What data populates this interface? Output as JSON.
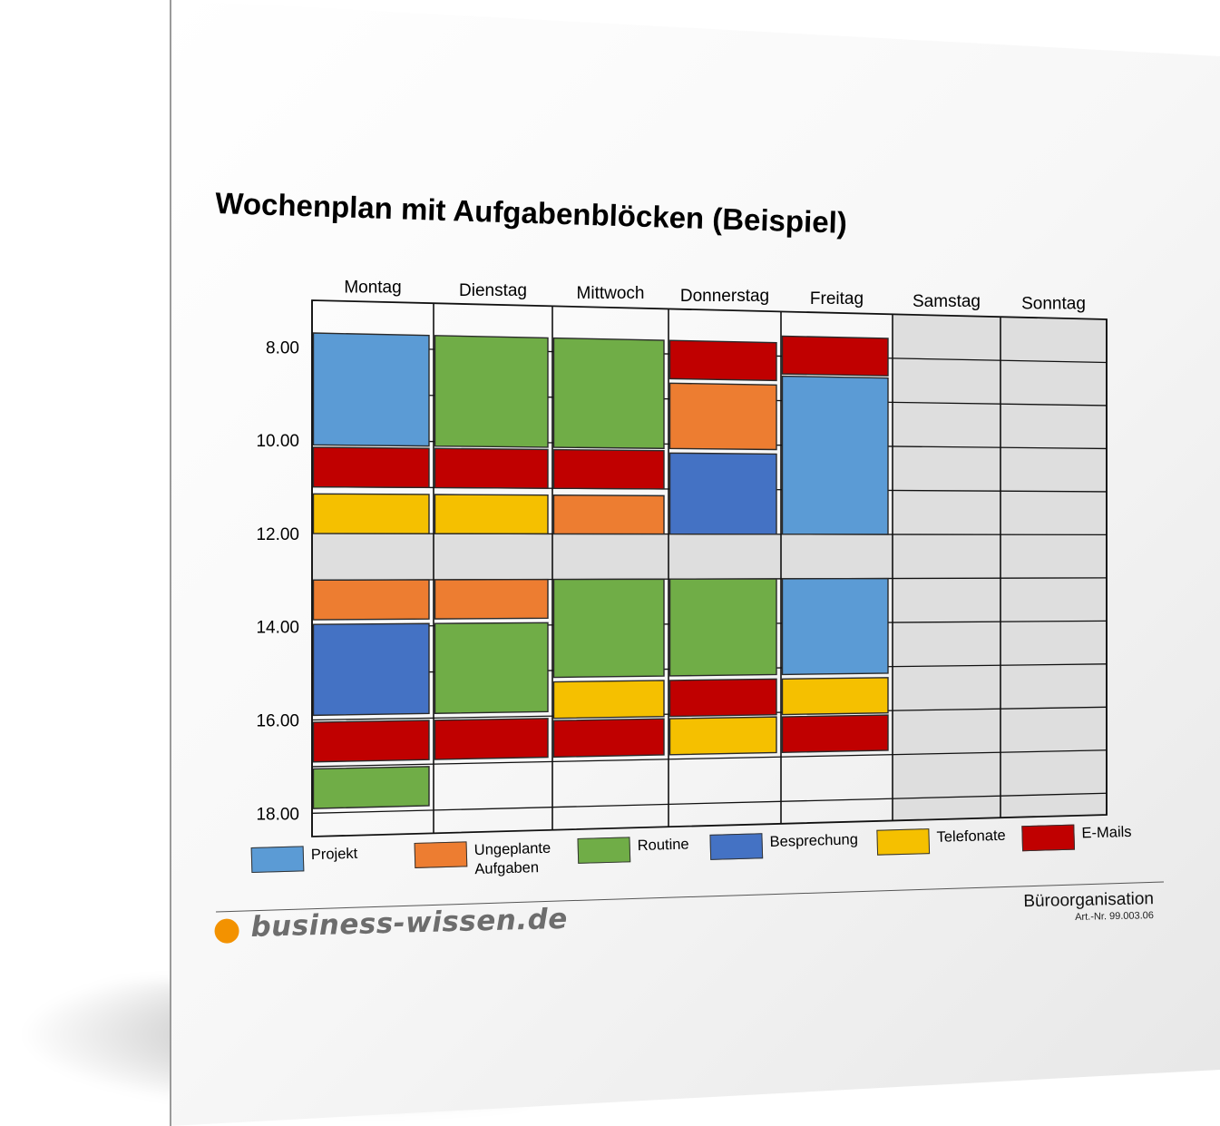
{
  "title": "Wochenplan mit Aufgabenblöcken (Beispiel)",
  "days": [
    "Montag",
    "Dienstag",
    "Mittwoch",
    "Donnerstag",
    "Freitag",
    "Samstag",
    "Sonntag"
  ],
  "time_labels": [
    {
      "label": "8.00",
      "hour": 8
    },
    {
      "label": "10.00",
      "hour": 10
    },
    {
      "label": "12.00",
      "hour": 12
    },
    {
      "label": "14.00",
      "hour": 14
    },
    {
      "label": "16.00",
      "hour": 16
    },
    {
      "label": "18.00",
      "hour": 18
    }
  ],
  "day_start_hour": 7,
  "day_end_hour": 18.5,
  "lunch_break": {
    "start": 12,
    "end": 13
  },
  "weekend_days": [
    "Samstag",
    "Sonntag"
  ],
  "colors": {
    "projekt": "#5b9bd5",
    "ungeplant": "#ed7d31",
    "routine": "#70ad47",
    "besprechung": "#4472c4",
    "telefonate": "#f5c000",
    "email": "#c00000",
    "grey": "#dedede"
  },
  "legend": [
    {
      "key": "projekt",
      "label": "Projekt"
    },
    {
      "key": "ungeplant",
      "label": "Ungeplante\nAufgaben"
    },
    {
      "key": "routine",
      "label": "Routine"
    },
    {
      "key": "besprechung",
      "label": "Besprechung"
    },
    {
      "key": "telefonate",
      "label": "Telefonate"
    },
    {
      "key": "email",
      "label": "E-Mails"
    }
  ],
  "blocks": [
    {
      "day": "Montag",
      "start": 7.7,
      "end": 10.1,
      "type": "projekt"
    },
    {
      "day": "Montag",
      "start": 10.15,
      "end": 11.0,
      "type": "email"
    },
    {
      "day": "Montag",
      "start": 11.15,
      "end": 12.0,
      "type": "telefonate"
    },
    {
      "day": "Montag",
      "start": 13.0,
      "end": 13.85,
      "type": "ungeplant"
    },
    {
      "day": "Montag",
      "start": 13.95,
      "end": 15.9,
      "type": "besprechung"
    },
    {
      "day": "Montag",
      "start": 16.05,
      "end": 16.9,
      "type": "email"
    },
    {
      "day": "Montag",
      "start": 17.05,
      "end": 17.9,
      "type": "routine"
    },
    {
      "day": "Dienstag",
      "start": 7.7,
      "end": 10.1,
      "type": "routine"
    },
    {
      "day": "Dienstag",
      "start": 10.15,
      "end": 11.0,
      "type": "email"
    },
    {
      "day": "Dienstag",
      "start": 11.15,
      "end": 12.0,
      "type": "telefonate"
    },
    {
      "day": "Dienstag",
      "start": 13.0,
      "end": 13.85,
      "type": "ungeplant"
    },
    {
      "day": "Dienstag",
      "start": 13.95,
      "end": 15.9,
      "type": "routine"
    },
    {
      "day": "Dienstag",
      "start": 16.05,
      "end": 16.9,
      "type": "email"
    },
    {
      "day": "Mittwoch",
      "start": 7.7,
      "end": 10.1,
      "type": "routine"
    },
    {
      "day": "Mittwoch",
      "start": 10.15,
      "end": 11.0,
      "type": "email"
    },
    {
      "day": "Mittwoch",
      "start": 11.15,
      "end": 12.0,
      "type": "ungeplant"
    },
    {
      "day": "Mittwoch",
      "start": 13.0,
      "end": 15.15,
      "type": "routine"
    },
    {
      "day": "Mittwoch",
      "start": 15.25,
      "end": 16.05,
      "type": "telefonate"
    },
    {
      "day": "Mittwoch",
      "start": 16.1,
      "end": 16.9,
      "type": "email"
    },
    {
      "day": "Donnerstag",
      "start": 7.7,
      "end": 8.55,
      "type": "email"
    },
    {
      "day": "Donnerstag",
      "start": 8.65,
      "end": 10.1,
      "type": "ungeplant"
    },
    {
      "day": "Donnerstag",
      "start": 10.2,
      "end": 12.0,
      "type": "besprechung"
    },
    {
      "day": "Donnerstag",
      "start": 13.0,
      "end": 15.15,
      "type": "routine"
    },
    {
      "day": "Donnerstag",
      "start": 15.25,
      "end": 16.05,
      "type": "email"
    },
    {
      "day": "Donnerstag",
      "start": 16.1,
      "end": 16.9,
      "type": "telefonate"
    },
    {
      "day": "Freitag",
      "start": 7.55,
      "end": 8.4,
      "type": "email"
    },
    {
      "day": "Freitag",
      "start": 8.45,
      "end": 12.0,
      "type": "projekt"
    },
    {
      "day": "Freitag",
      "start": 13.0,
      "end": 15.15,
      "type": "projekt"
    },
    {
      "day": "Freitag",
      "start": 15.25,
      "end": 16.05,
      "type": "telefonate"
    },
    {
      "day": "Freitag",
      "start": 16.1,
      "end": 16.9,
      "type": "email"
    }
  ],
  "footer": {
    "logo_text": "business-wissen.de",
    "category": "Büroorganisation",
    "article": "Art.-Nr. 99.003.06"
  }
}
